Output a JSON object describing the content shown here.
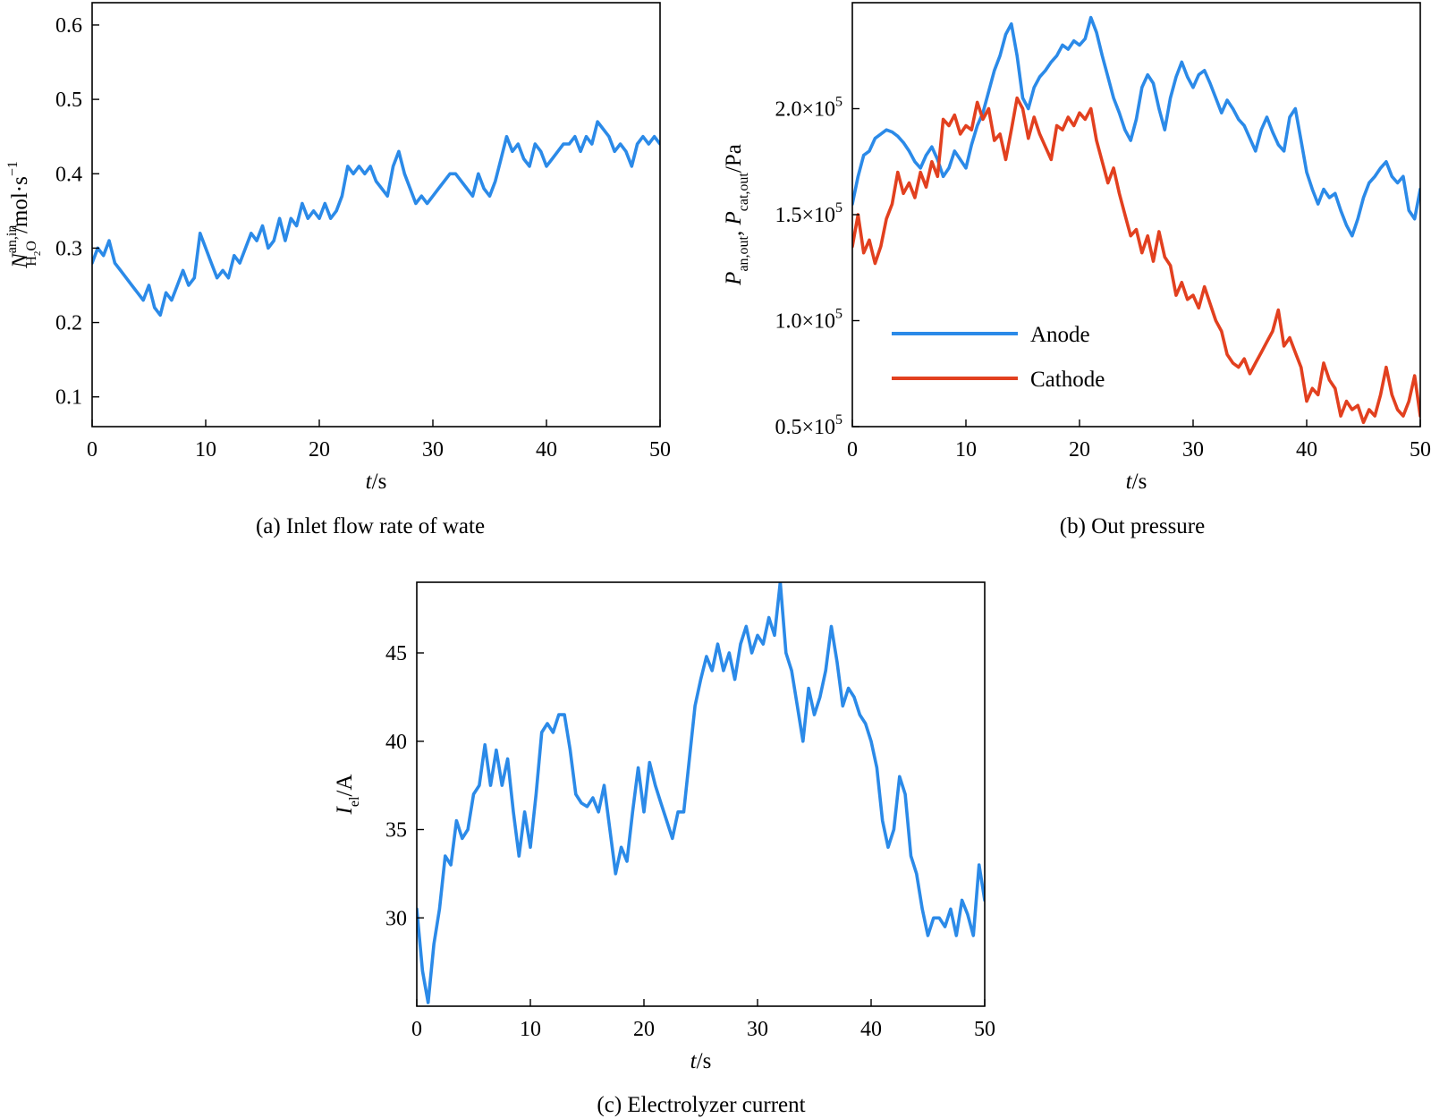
{
  "colors": {
    "anode_blue": "#2b8ae8",
    "cathode_red": "#e2401f",
    "axis": "#000000"
  },
  "chart_data": [
    {
      "id": "a",
      "type": "line",
      "caption": "(a) Inlet flow rate of wate",
      "xlabel_italic": "t",
      "xlabel_rest": "/s",
      "ylabel": {
        "main": "N",
        "sup": "an,in",
        "sub": "H",
        "sub2": "2",
        "sub3": "O",
        "unit": "/mol·s",
        "exp": "−1"
      },
      "xlim": [
        0,
        50
      ],
      "ylim": [
        0.06,
        0.63
      ],
      "xticks": [
        0,
        10,
        20,
        30,
        40,
        50
      ],
      "xtick_labels": [
        "0",
        "10",
        "20",
        "30",
        "40",
        "50"
      ],
      "yticks": [
        0.1,
        0.2,
        0.3,
        0.4,
        0.5,
        0.6
      ],
      "ytick_labels": [
        "0.1",
        "0.2",
        "0.3",
        "0.4",
        "0.5",
        "0.6"
      ],
      "series": [
        {
          "color": "#2b8ae8",
          "x": [
            0,
            0.5,
            1,
            1.5,
            2,
            2.5,
            3,
            3.5,
            4,
            4.5,
            5,
            5.5,
            6,
            6.5,
            7,
            7.5,
            8,
            8.5,
            9,
            9.5,
            10,
            10.5,
            11,
            11.5,
            12,
            12.5,
            13,
            13.5,
            14,
            14.5,
            15,
            15.5,
            16,
            16.5,
            17,
            17.5,
            18,
            18.5,
            19,
            19.5,
            20,
            20.5,
            21,
            21.5,
            22,
            22.5,
            23,
            23.5,
            24,
            24.5,
            25,
            25.5,
            26,
            26.5,
            27,
            27.5,
            28,
            28.5,
            29,
            29.5,
            30,
            30.5,
            31,
            31.5,
            32,
            32.5,
            33,
            33.5,
            34,
            34.5,
            35,
            35.5,
            36,
            36.5,
            37,
            37.5,
            38,
            38.5,
            39,
            39.5,
            40,
            40.5,
            41,
            41.5,
            42,
            42.5,
            43,
            43.5,
            44,
            44.5,
            45,
            45.5,
            46,
            46.5,
            47,
            47.5,
            48,
            48.5,
            49,
            49.5,
            50
          ],
          "y": [
            0.28,
            0.3,
            0.29,
            0.31,
            0.28,
            0.27,
            0.26,
            0.25,
            0.24,
            0.23,
            0.25,
            0.22,
            0.21,
            0.24,
            0.23,
            0.25,
            0.27,
            0.25,
            0.26,
            0.32,
            0.3,
            0.28,
            0.26,
            0.27,
            0.26,
            0.29,
            0.28,
            0.3,
            0.32,
            0.31,
            0.33,
            0.3,
            0.31,
            0.34,
            0.31,
            0.34,
            0.33,
            0.36,
            0.34,
            0.35,
            0.34,
            0.36,
            0.34,
            0.35,
            0.37,
            0.41,
            0.4,
            0.41,
            0.4,
            0.41,
            0.39,
            0.38,
            0.37,
            0.41,
            0.43,
            0.4,
            0.38,
            0.36,
            0.37,
            0.36,
            0.37,
            0.38,
            0.39,
            0.4,
            0.4,
            0.39,
            0.38,
            0.37,
            0.4,
            0.38,
            0.37,
            0.39,
            0.42,
            0.45,
            0.43,
            0.44,
            0.42,
            0.41,
            0.44,
            0.43,
            0.41,
            0.42,
            0.43,
            0.44,
            0.44,
            0.45,
            0.43,
            0.45,
            0.44,
            0.47,
            0.46,
            0.45,
            0.43,
            0.44,
            0.43,
            0.41,
            0.44,
            0.45,
            0.44,
            0.45,
            0.44
          ]
        }
      ]
    },
    {
      "id": "b",
      "type": "line",
      "caption": "(b) Out pressure",
      "xlabel_italic": "t",
      "xlabel_rest": "/s",
      "ylabel": {
        "p1": "P",
        "s1": "an,out",
        "sep": ", ",
        "p2": "P",
        "s2": "cat,out",
        "unit": "/Pa"
      },
      "xlim": [
        0,
        50
      ],
      "ylim": [
        50000,
        250000
      ],
      "xticks": [
        0,
        10,
        20,
        30,
        40,
        50
      ],
      "xtick_labels": [
        "0",
        "10",
        "20",
        "30",
        "40",
        "50"
      ],
      "yticks": [
        50000,
        100000,
        150000,
        200000
      ],
      "ytick_mantissas": [
        "0.5×10",
        "1.0×10",
        "1.5×10",
        "2.0×10"
      ],
      "ytick_exp": "5",
      "legend": {
        "position": "middle-left",
        "entries": [
          "Anode",
          "Cathode"
        ]
      },
      "series": [
        {
          "name": "Anode",
          "color": "#2b8ae8",
          "x": [
            0,
            0.5,
            1,
            1.5,
            2,
            2.5,
            3,
            3.5,
            4,
            4.5,
            5,
            5.5,
            6,
            6.5,
            7,
            7.5,
            8,
            8.5,
            9,
            9.5,
            10,
            10.5,
            11,
            11.5,
            12,
            12.5,
            13,
            13.5,
            14,
            14.5,
            15,
            15.5,
            16,
            16.5,
            17,
            17.5,
            18,
            18.5,
            19,
            19.5,
            20,
            20.5,
            21,
            21.5,
            22,
            22.5,
            23,
            23.5,
            24,
            24.5,
            25,
            25.5,
            26,
            26.5,
            27,
            27.5,
            28,
            28.5,
            29,
            29.5,
            30,
            30.5,
            31,
            31.5,
            32,
            32.5,
            33,
            33.5,
            34,
            34.5,
            35,
            35.5,
            36,
            36.5,
            37,
            37.5,
            38,
            38.5,
            39,
            39.5,
            40,
            40.5,
            41,
            41.5,
            42,
            42.5,
            43,
            43.5,
            44,
            44.5,
            45,
            45.5,
            46,
            46.5,
            47,
            47.5,
            48,
            48.5,
            49,
            49.5,
            50
          ],
          "y": [
            155000,
            168000,
            178000,
            180000,
            186000,
            188000,
            190000,
            189000,
            187000,
            184000,
            180000,
            175000,
            172000,
            178000,
            182000,
            176000,
            168000,
            172000,
            180000,
            176000,
            172000,
            183000,
            192000,
            198000,
            208000,
            218000,
            225000,
            235000,
            240000,
            225000,
            205000,
            200000,
            210000,
            215000,
            218000,
            222000,
            225000,
            230000,
            228000,
            232000,
            230000,
            233000,
            243000,
            236000,
            225000,
            215000,
            205000,
            198000,
            190000,
            185000,
            195000,
            210000,
            216000,
            212000,
            200000,
            190000,
            205000,
            215000,
            222000,
            215000,
            210000,
            216000,
            218000,
            212000,
            205000,
            198000,
            204000,
            200000,
            195000,
            192000,
            186000,
            180000,
            190000,
            196000,
            189000,
            183000,
            180000,
            196000,
            200000,
            185000,
            170000,
            162000,
            155000,
            162000,
            158000,
            160000,
            152000,
            145000,
            140000,
            148000,
            158000,
            165000,
            168000,
            172000,
            175000,
            168000,
            165000,
            168000,
            152000,
            148000,
            162000
          ]
        },
        {
          "name": "Cathode",
          "color": "#e2401f",
          "x": [
            0,
            0.5,
            1,
            1.5,
            2,
            2.5,
            3,
            3.5,
            4,
            4.5,
            5,
            5.5,
            6,
            6.5,
            7,
            7.5,
            8,
            8.5,
            9,
            9.5,
            10,
            10.5,
            11,
            11.5,
            12,
            12.5,
            13,
            13.5,
            14,
            14.5,
            15,
            15.5,
            16,
            16.5,
            17,
            17.5,
            18,
            18.5,
            19,
            19.5,
            20,
            20.5,
            21,
            21.5,
            22,
            22.5,
            23,
            23.5,
            24,
            24.5,
            25,
            25.5,
            26,
            26.5,
            27,
            27.5,
            28,
            28.5,
            29,
            29.5,
            30,
            30.5,
            31,
            31.5,
            32,
            32.5,
            33,
            33.5,
            34,
            34.5,
            35,
            35.5,
            36,
            36.5,
            37,
            37.5,
            38,
            38.5,
            39,
            39.5,
            40,
            40.5,
            41,
            41.5,
            42,
            42.5,
            43,
            43.5,
            44,
            44.5,
            45,
            45.5,
            46,
            46.5,
            47,
            47.5,
            48,
            48.5,
            49,
            49.5,
            50
          ],
          "y": [
            135000,
            150000,
            132000,
            138000,
            127000,
            135000,
            148000,
            155000,
            170000,
            160000,
            165000,
            158000,
            170000,
            163000,
            175000,
            168000,
            195000,
            192000,
            197000,
            188000,
            192000,
            190000,
            203000,
            195000,
            200000,
            185000,
            188000,
            176000,
            190000,
            205000,
            200000,
            186000,
            196000,
            188000,
            182000,
            176000,
            192000,
            190000,
            196000,
            192000,
            198000,
            195000,
            200000,
            185000,
            175000,
            165000,
            172000,
            160000,
            150000,
            140000,
            143000,
            132000,
            140000,
            128000,
            142000,
            130000,
            126000,
            112000,
            118000,
            110000,
            112000,
            106000,
            116000,
            108000,
            100000,
            95000,
            84000,
            80000,
            78000,
            82000,
            75000,
            80000,
            85000,
            90000,
            95000,
            105000,
            88000,
            92000,
            85000,
            78000,
            62000,
            68000,
            65000,
            80000,
            72000,
            68000,
            55000,
            62000,
            58000,
            60000,
            52000,
            58000,
            55000,
            65000,
            78000,
            65000,
            58000,
            55000,
            62000,
            74000,
            55000
          ]
        }
      ]
    },
    {
      "id": "c",
      "type": "line",
      "caption": "(c) Electrolyzer current",
      "xlabel_italic": "t",
      "xlabel_rest": "/s",
      "ylabel": {
        "main": "I",
        "sub": "el",
        "unit": "/A"
      },
      "xlim": [
        0,
        50
      ],
      "ylim": [
        25,
        49
      ],
      "xticks": [
        0,
        10,
        20,
        30,
        40,
        50
      ],
      "xtick_labels": [
        "0",
        "10",
        "20",
        "30",
        "40",
        "50"
      ],
      "yticks": [
        30,
        35,
        40,
        45
      ],
      "ytick_labels": [
        "30",
        "35",
        "40",
        "45"
      ],
      "series": [
        {
          "color": "#2b8ae8",
          "x": [
            0,
            0.5,
            1,
            1.5,
            2,
            2.5,
            3,
            3.5,
            4,
            4.5,
            5,
            5.5,
            6,
            6.5,
            7,
            7.5,
            8,
            8.5,
            9,
            9.5,
            10,
            10.5,
            11,
            11.5,
            12,
            12.5,
            13,
            13.5,
            14,
            14.5,
            15,
            15.5,
            16,
            16.5,
            17,
            17.5,
            18,
            18.5,
            19,
            19.5,
            20,
            20.5,
            21,
            21.5,
            22,
            22.5,
            23,
            23.5,
            24,
            24.5,
            25,
            25.5,
            26,
            26.5,
            27,
            27.5,
            28,
            28.5,
            29,
            29.5,
            30,
            30.5,
            31,
            31.5,
            32,
            32.5,
            33,
            33.5,
            34,
            34.5,
            35,
            35.5,
            36,
            36.5,
            37,
            37.5,
            38,
            38.5,
            39,
            39.5,
            40,
            40.5,
            41,
            41.5,
            42,
            42.5,
            43,
            43.5,
            44,
            44.5,
            45,
            45.5,
            46,
            46.5,
            47,
            47.5,
            48,
            48.5,
            49,
            49.5,
            50
          ],
          "y": [
            30.5,
            27,
            25.2,
            28.5,
            30.5,
            33.5,
            33,
            35.5,
            34.5,
            35,
            37,
            37.5,
            39.8,
            37.5,
            39.5,
            37.5,
            39,
            36,
            33.5,
            36,
            34,
            37,
            40.5,
            41,
            40.5,
            41.5,
            41.5,
            39.5,
            37,
            36.5,
            36.3,
            36.8,
            36,
            37.5,
            35,
            32.5,
            34,
            33.2,
            36,
            38.5,
            36,
            38.8,
            37.5,
            36.5,
            35.5,
            34.5,
            36,
            36,
            39,
            42,
            43.5,
            44.8,
            44,
            45.5,
            44,
            45,
            43.5,
            45.5,
            46.5,
            45,
            46,
            45.5,
            47,
            46,
            49,
            45,
            44,
            42,
            40,
            43,
            41.5,
            42.5,
            44,
            46.5,
            44.5,
            42,
            43,
            42.5,
            41.5,
            41,
            40,
            38.5,
            35.5,
            34,
            35,
            38,
            37,
            33.5,
            32.5,
            30.5,
            29,
            30,
            30,
            29.5,
            30.5,
            29,
            31,
            30.2,
            29,
            33,
            31
          ]
        }
      ]
    }
  ]
}
